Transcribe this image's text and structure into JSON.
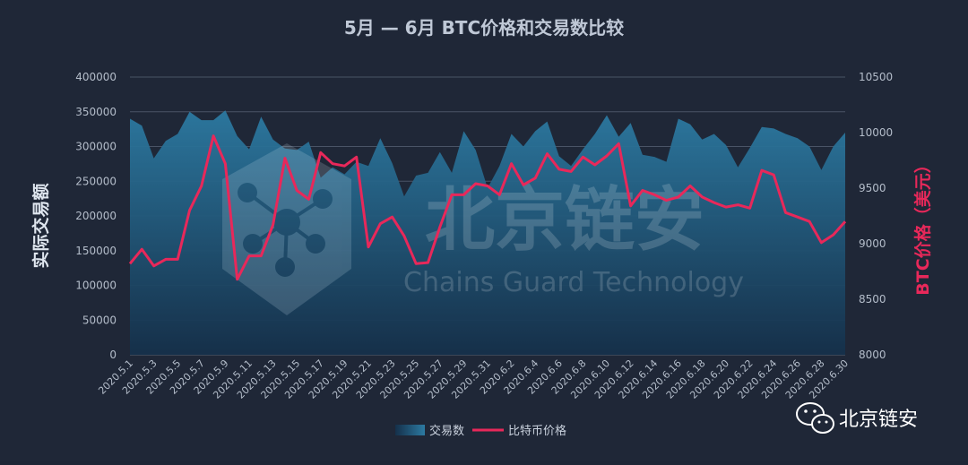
{
  "chart_data": {
    "type": "area+line",
    "title": "5月 — 6月 BTC价格和交易数比较",
    "ylabel_left": "实际交易额",
    "ylabel_right": "BTC价格（美元）",
    "ylim_left": [
      0,
      400000
    ],
    "ylim_right": [
      8000,
      10500
    ],
    "yticks_left": [
      0,
      50000,
      100000,
      150000,
      200000,
      250000,
      300000,
      350000,
      400000
    ],
    "yticks_right": [
      8000,
      8500,
      9000,
      9500,
      10000,
      10500
    ],
    "x": [
      "2020.5.1",
      "2020.5.2",
      "2020.5.3",
      "2020.5.4",
      "2020.5.5",
      "2020.5.6",
      "2020.5.7",
      "2020.5.8",
      "2020.5.9",
      "2020.5.10",
      "2020.5.11",
      "2020.5.12",
      "2020.5.13",
      "2020.5.14",
      "2020.5.15",
      "2020.5.16",
      "2020.5.17",
      "2020.5.18",
      "2020.5.19",
      "2020.5.20",
      "2020.5.21",
      "2020.5.22",
      "2020.5.23",
      "2020.5.24",
      "2020.5.25",
      "2020.5.26",
      "2020.5.27",
      "2020.5.28",
      "2020.5.29",
      "2020.5.30",
      "2020.5.31",
      "2020.6.1",
      "2020.6.2",
      "2020.6.3",
      "2020.6.4",
      "2020.6.5",
      "2020.6.6",
      "2020.6.7",
      "2020.6.8",
      "2020.6.9",
      "2020.6.10",
      "2020.6.11",
      "2020.6.12",
      "2020.6.13",
      "2020.6.14",
      "2020.6.15",
      "2020.6.16",
      "2020.6.17",
      "2020.6.18",
      "2020.6.19",
      "2020.6.20",
      "2020.6.21",
      "2020.6.22",
      "2020.6.23",
      "2020.6.24",
      "2020.6.25",
      "2020.6.26",
      "2020.6.27",
      "2020.6.28",
      "2020.6.29",
      "2020.6.30"
    ],
    "xticks_shown": [
      "2020.5.1",
      "2020.5.3",
      "2020.5.5",
      "2020.5.7",
      "2020.5.9",
      "2020.5.11",
      "2020.5.13",
      "2020.5.15",
      "2020.5.17",
      "2020.5.19",
      "2020.5.21",
      "2020.5.23",
      "2020.5.25",
      "2020.5.27",
      "2020.5.29",
      "2020.5.31",
      "2020.6.2",
      "2020.6.4",
      "2020.6.6",
      "2020.6.8",
      "2020.6.10",
      "2020.6.12",
      "2020.6.14",
      "2020.6.16",
      "2020.6.18",
      "2020.6.20",
      "2020.6.22",
      "2020.6.24",
      "2020.6.26",
      "2020.6.28",
      "2020.6.30"
    ],
    "series": [
      {
        "name": "交易数",
        "kind": "area",
        "axis": "left",
        "color": "#2a6f94",
        "values": [
          340000,
          330000,
          283000,
          308000,
          318000,
          350000,
          338000,
          338000,
          352000,
          315000,
          296000,
          343000,
          310000,
          297000,
          295000,
          307000,
          255000,
          270000,
          260000,
          278000,
          272000,
          312000,
          276000,
          228000,
          258000,
          262000,
          292000,
          262000,
          322000,
          295000,
          240000,
          272000,
          318000,
          300000,
          322000,
          336000,
          286000,
          272000,
          296000,
          318000,
          345000,
          314000,
          334000,
          288000,
          285000,
          278000,
          340000,
          332000,
          310000,
          318000,
          302000,
          270000,
          298000,
          328000,
          326000,
          318000,
          312000,
          300000,
          266000,
          300000,
          320000
        ]
      },
      {
        "name": "比特币价格",
        "kind": "line",
        "axis": "right",
        "color": "#e8285a",
        "values": [
          8820,
          8950,
          8800,
          8860,
          8860,
          9300,
          9520,
          9970,
          9720,
          8680,
          8890,
          8890,
          9170,
          9770,
          9480,
          9400,
          9820,
          9720,
          9700,
          9780,
          8970,
          9180,
          9240,
          9070,
          8820,
          8830,
          9150,
          9440,
          9440,
          9540,
          9520,
          9440,
          9720,
          9530,
          9590,
          9810,
          9670,
          9650,
          9780,
          9710,
          9790,
          9900,
          9340,
          9480,
          9440,
          9390,
          9420,
          9520,
          9420,
          9370,
          9330,
          9350,
          9320,
          9660,
          9620,
          9280,
          9240,
          9200,
          9010,
          9080,
          9200
        ]
      }
    ],
    "legend": {
      "placement": "bottom"
    },
    "grid": true
  },
  "watermark": {
    "cn": "北京链安",
    "en": "Chains Guard Technology"
  },
  "brand": {
    "label": "北京链安",
    "icon": "wechat-icon"
  },
  "colors": {
    "background": "#1f2737",
    "title": "#bfc8d6",
    "left_axis_label": "#dfe6ef",
    "right_axis_label": "#e8285a",
    "tick": "#b4bdca",
    "grid": "#4a5466"
  }
}
